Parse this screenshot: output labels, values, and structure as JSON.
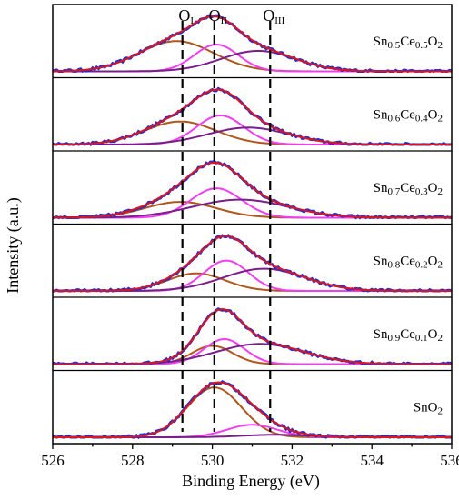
{
  "chart_data": {
    "type": "line",
    "xlabel": "Binding Energy (eV)",
    "ylabel": "Intensity (a.u.)",
    "xlim": [
      526,
      536
    ],
    "x_ticks": [
      "526",
      "528",
      "530",
      "532",
      "534",
      "536"
    ],
    "reference_lines": [
      {
        "x": 529.25,
        "label": "O",
        "sub": "I"
      },
      {
        "x": 530.05,
        "label": "O",
        "sub": "II"
      },
      {
        "x": 531.45,
        "label": "O",
        "sub": "III"
      }
    ],
    "component_colors": {
      "measured": "#1f2fd6",
      "envelope": "#e0141b",
      "O_I": "#b0561c",
      "O_II": "#f23ef2",
      "O_III": "#7a1f8a"
    },
    "panels": [
      {
        "sample": [
          "Sn",
          "0.5",
          "Ce",
          "0.5",
          "O",
          "2"
        ],
        "components": [
          {
            "peak": "O_I",
            "center": 529.1,
            "fwhm": 2.2,
            "height": 0.62
          },
          {
            "peak": "O_II",
            "center": 530.1,
            "fwhm": 1.3,
            "height": 0.55
          },
          {
            "peak": "O_III",
            "center": 531.15,
            "fwhm": 2.2,
            "height": 0.42
          }
        ]
      },
      {
        "sample": [
          "Sn",
          "0.6",
          "Ce",
          "0.4",
          "O",
          "2"
        ],
        "components": [
          {
            "peak": "O_I",
            "center": 529.2,
            "fwhm": 2.1,
            "height": 0.38
          },
          {
            "peak": "O_II",
            "center": 530.2,
            "fwhm": 1.4,
            "height": 0.48
          },
          {
            "peak": "O_III",
            "center": 530.9,
            "fwhm": 2.4,
            "height": 0.28
          }
        ]
      },
      {
        "sample": [
          "Sn",
          "0.7",
          "Ce",
          "0.3",
          "O",
          "2"
        ],
        "components": [
          {
            "peak": "O_I",
            "center": 529.2,
            "fwhm": 2.1,
            "height": 0.28
          },
          {
            "peak": "O_II",
            "center": 530.1,
            "fwhm": 1.5,
            "height": 0.52
          },
          {
            "peak": "O_III",
            "center": 530.7,
            "fwhm": 2.8,
            "height": 0.32
          }
        ]
      },
      {
        "sample": [
          "Sn",
          "0.8",
          "Ce",
          "0.2",
          "O",
          "2"
        ],
        "components": [
          {
            "peak": "O_I",
            "center": 529.6,
            "fwhm": 1.7,
            "height": 0.3
          },
          {
            "peak": "O_II",
            "center": 530.35,
            "fwhm": 1.3,
            "height": 0.52
          },
          {
            "peak": "O_III",
            "center": 531.3,
            "fwhm": 2.4,
            "height": 0.38
          }
        ]
      },
      {
        "sample": [
          "Sn",
          "0.9",
          "Ce",
          "0.1",
          "O",
          "2"
        ],
        "components": [
          {
            "peak": "O_I",
            "center": 530.0,
            "fwhm": 1.2,
            "height": 0.38
          },
          {
            "peak": "O_II",
            "center": 530.3,
            "fwhm": 1.2,
            "height": 0.52
          },
          {
            "peak": "O_III",
            "center": 531.2,
            "fwhm": 2.6,
            "height": 0.42
          }
        ]
      },
      {
        "sample": [
          "SnO",
          "2"
        ],
        "components": [
          {
            "peak": "O_I",
            "center": 530.05,
            "fwhm": 1.6,
            "height": 1.0
          },
          {
            "peak": "O_II",
            "center": 531.0,
            "fwhm": 1.5,
            "height": 0.25
          },
          {
            "peak": "O_III",
            "center": 531.6,
            "fwhm": 2.0,
            "height": 0.05
          }
        ]
      }
    ]
  }
}
